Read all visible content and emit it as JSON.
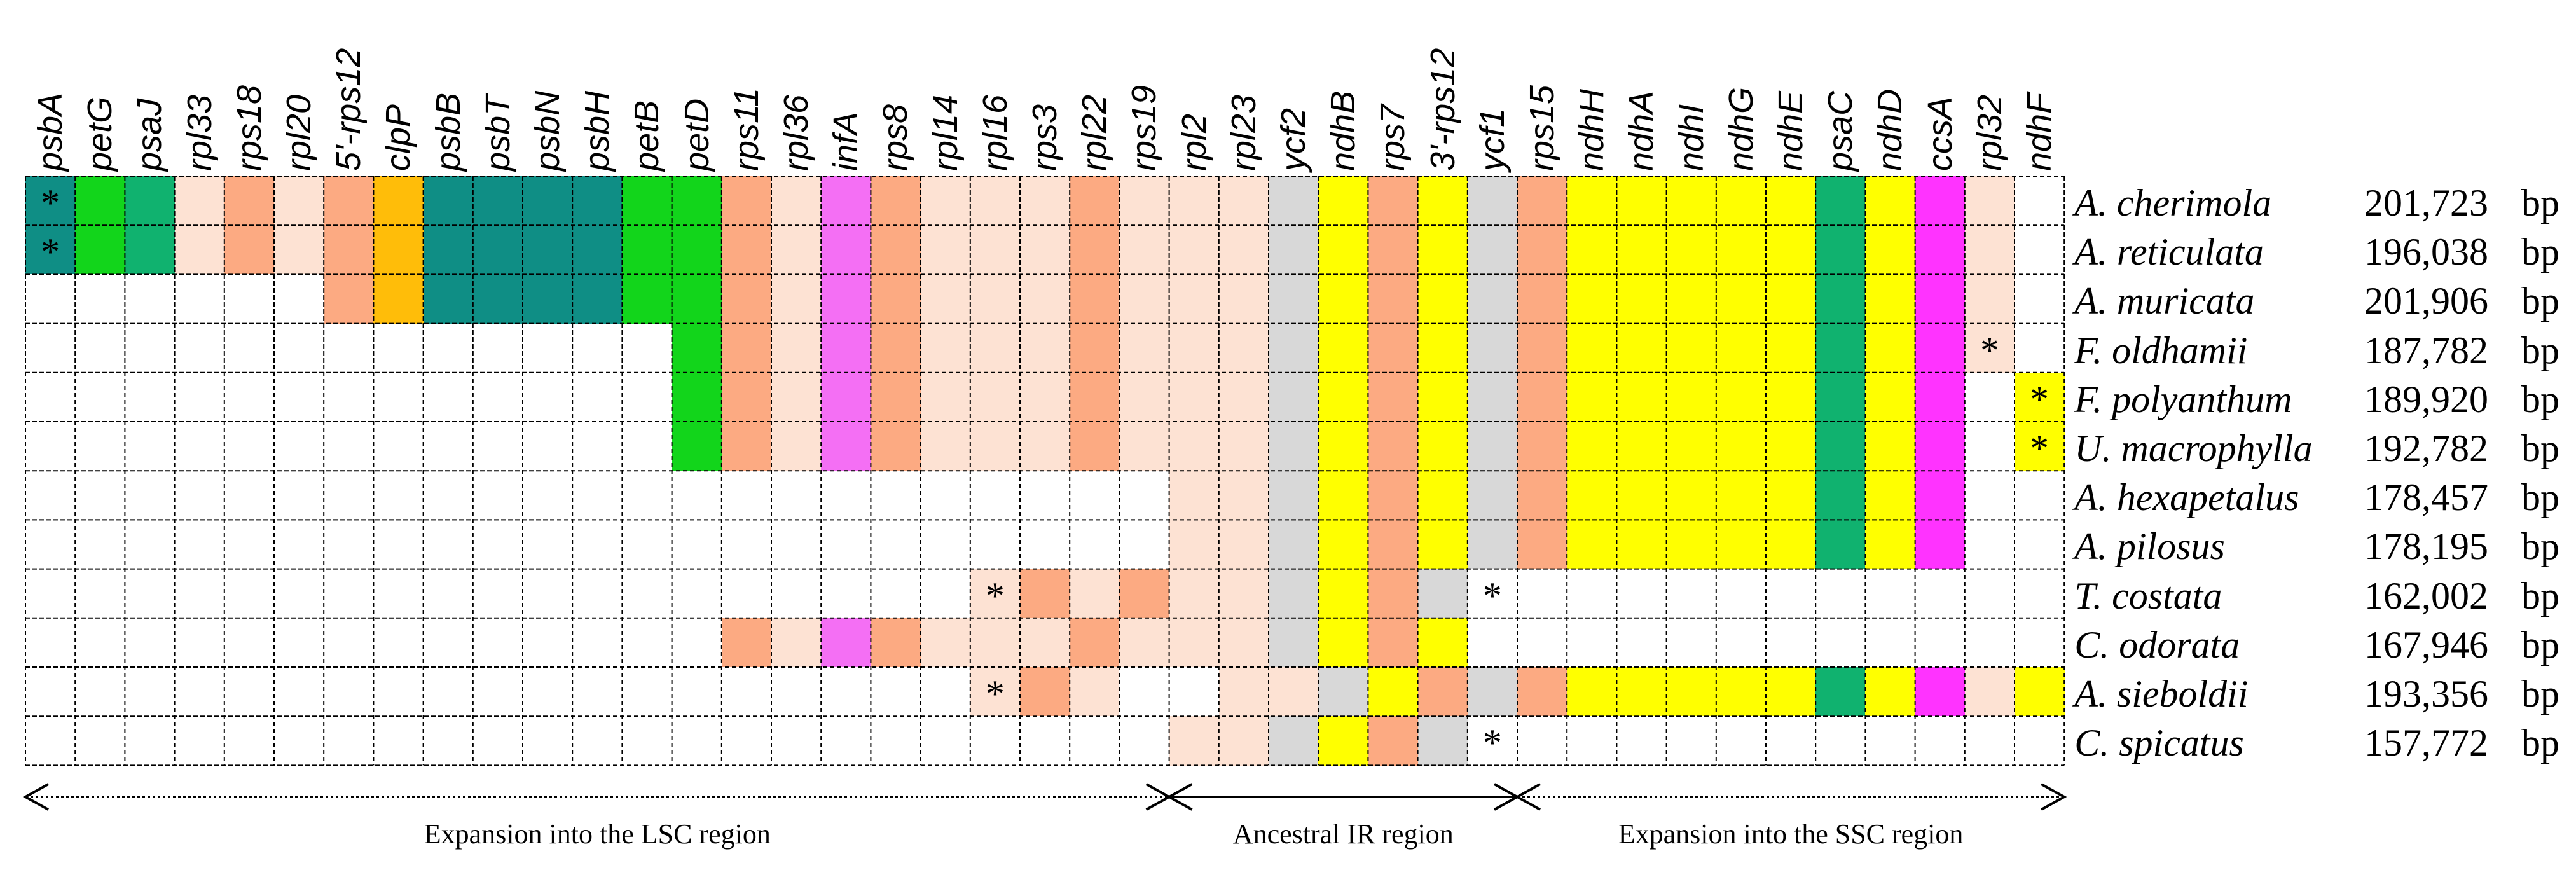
{
  "colors": {
    "d": "#0f8e85",
    "g": "#12d51b",
    "m": "#10b26f",
    "l": "#fde2d3",
    "s": "#fcaa82",
    "o": "#ffbd09",
    "p": "#f46ff4",
    "y": "#ffff00",
    "r": "#d8d8d8",
    "c": "#ff33ff",
    "w": "#ffffff",
    "grid": "#000000"
  },
  "genes": [
    "psbA",
    "petG",
    "psaJ",
    "rpl33",
    "rps18",
    "rpl20",
    "5'-rps12",
    "clpP",
    "psbB",
    "psbT",
    "psbN",
    "psbH",
    "petB",
    "petD",
    "rps11",
    "rpl36",
    "infA",
    "rps8",
    "rpl14",
    "rpl16",
    "rps3",
    "rpl22",
    "rps19",
    "rpl2",
    "rpl23",
    "ycf2",
    "ndhB",
    "rps7",
    "3'-rps12",
    "ycf1",
    "rps15",
    "ndhH",
    "ndhA",
    "ndhI",
    "ndhG",
    "ndhE",
    "psaC",
    "ndhD",
    "ccsA",
    "rpl32",
    "ndhF"
  ],
  "rows": [
    {
      "species": "A. cherimola",
      "size": "201,723",
      "unit": "bp",
      "cells": "dgmlslsoddddggslpslllslllrysyrsyyyyymyclw",
      "stars": [
        0
      ]
    },
    {
      "species": "A. reticulata",
      "size": "196,038",
      "unit": "bp",
      "cells": "dgmlslsoddddggslpslllslllrysyrsyyyyymyclw",
      "stars": [
        0
      ]
    },
    {
      "species": "A. muricata",
      "size": "201,906",
      "unit": "bp",
      "cells": "wwwwwwsoddddggslpslllslllrysyrsyyyyymyclw",
      "stars": []
    },
    {
      "species": "F. oldhamii",
      "size": "187,782",
      "unit": "bp",
      "cells": "wwwwwwwwwwwwwgslpslllslllrysyrsyyyyymyclw",
      "stars": [
        39
      ]
    },
    {
      "species": "F. polyanthum",
      "size": "189,920",
      "unit": "bp",
      "cells": "wwwwwwwwwwwwwgslpslllslllrysyrsyyyyymycwy",
      "stars": [
        40
      ]
    },
    {
      "species": "U. macrophylla",
      "size": "192,782",
      "unit": "bp",
      "cells": "wwwwwwwwwwwwwgslpslllslllrysyrsyyyyymycwy",
      "stars": [
        40
      ]
    },
    {
      "species": "A. hexapetalus",
      "size": "178,457",
      "unit": "bp",
      "cells": "wwwwwwwwwwwwwwwwwwwwwwwllrysyrsyyyyymycww",
      "stars": []
    },
    {
      "species": "A. pilosus",
      "size": "178,195",
      "unit": "bp",
      "cells": "wwwwwwwwwwwwwwwwwwwwwwwllrysyrsyyyyymycww",
      "stars": []
    },
    {
      "species": "T. costata",
      "size": "162,002",
      "unit": "bp",
      "cells": "wwwwwwwwwwwwwwwwwwwlslsllrysrwwwwwwwwwwww",
      "stars": [
        19,
        29
      ]
    },
    {
      "species": "C. odorata",
      "size": "167,946",
      "unit": "bp",
      "cells": "wwwwwwwwwwwwwwslpslllslllrysywwwwwwwwwwww",
      "stars": []
    },
    {
      "species": "A. sieboldii",
      "size": "193,356",
      "unit": "bp",
      "cells": "wwwwwwwwwwwwwwwwwwwlslwwllrysrsyyyyymycly",
      "stars": [
        19
      ]
    },
    {
      "species": "C. spicatus",
      "size": "157,772",
      "unit": "bp",
      "cells": "wwwwwwwwwwwwwwwwwwwwwwwllrysrwwwwwwwwwwww",
      "stars": [
        29
      ]
    }
  ],
  "regions": [
    {
      "label": "Expansion into the LSC region",
      "from": 0,
      "to": 23,
      "line": "dotted"
    },
    {
      "label": "Ancestral IR region",
      "from": 23,
      "to": 30,
      "line": "solid"
    },
    {
      "label": "Expansion into the SSC region",
      "from": 30,
      "to": 41,
      "line": "dotted"
    }
  ],
  "star_symbol": "*"
}
